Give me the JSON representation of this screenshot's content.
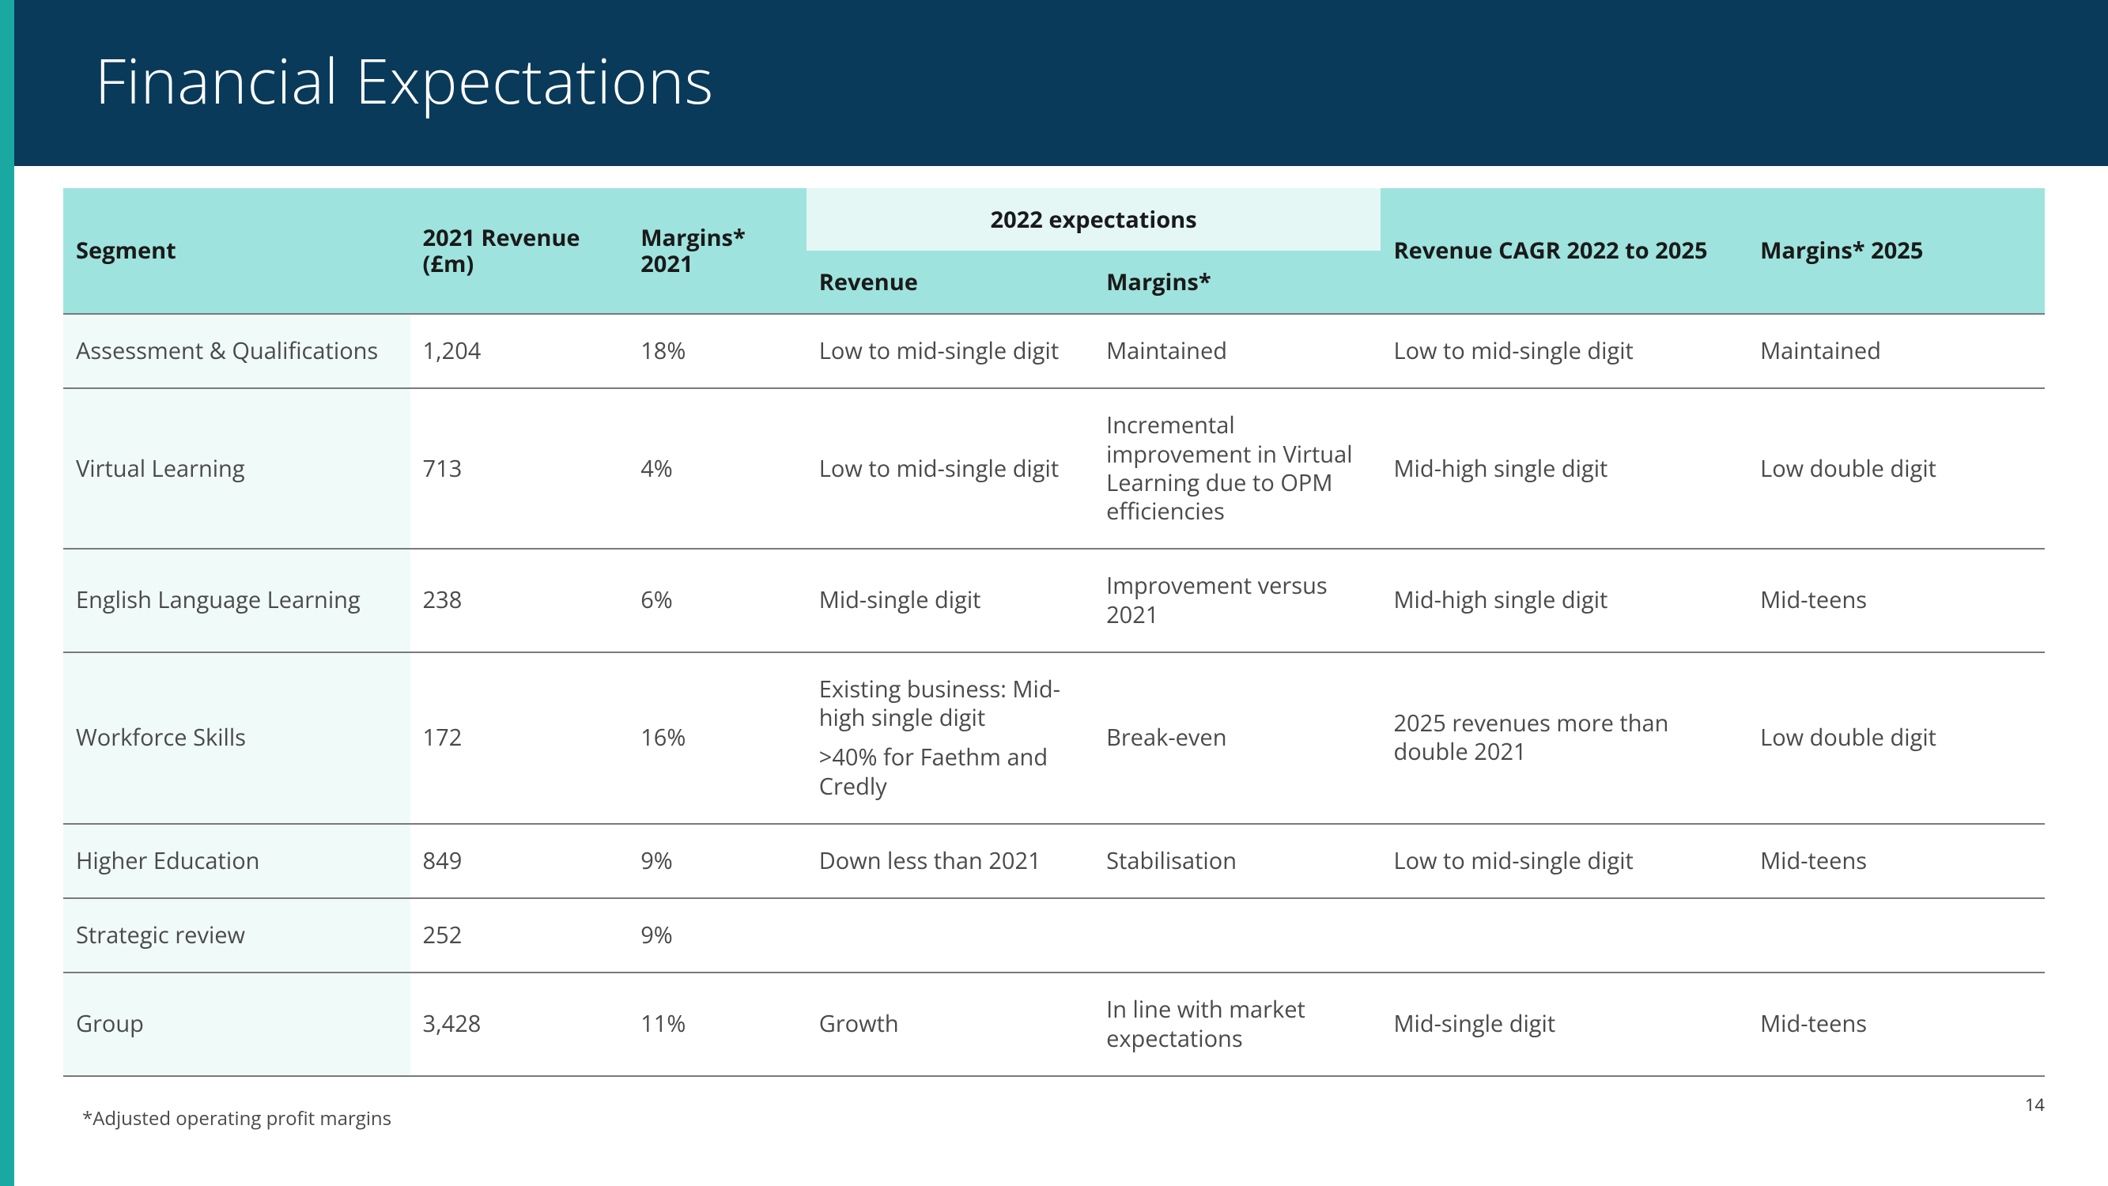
{
  "colors": {
    "accent": "#19a9a0",
    "header_bg": "#0a3a5a",
    "th_bg_main": "#9fe3de",
    "th_bg_expect_top": "#e4f7f5",
    "row_seg_bg": "#f0faf9",
    "border": "#7a7a7a",
    "text": "#4a4a4a",
    "title_text": "#ffffff"
  },
  "typography": {
    "title_fontsize": 78,
    "title_weight": 300,
    "th_fontsize": 29,
    "td_fontsize": 29,
    "footnote_fontsize": 24
  },
  "title": "Financial Expectations",
  "page_number": "14",
  "footnote": "*Adjusted operating profit margins",
  "table": {
    "headers": {
      "segment": "Segment",
      "rev2021": "2021 Revenue (£m)",
      "margins2021": "Margins* 2021",
      "expectations_group": "2022 expectations",
      "exp_revenue": "Revenue",
      "exp_margins": "Margins*",
      "cagr": "Revenue CAGR 2022 to 2025",
      "margins2025": "Margins* 2025"
    },
    "rows": [
      {
        "segment": "Assessment & Qualifications",
        "rev2021": "1,204",
        "margins2021": "18%",
        "exp_revenue": "Low to mid-single digit",
        "exp_margins": "Maintained",
        "cagr": "Low to mid-single digit",
        "margins2025": "Maintained"
      },
      {
        "segment": "Virtual Learning",
        "rev2021": "713",
        "margins2021": "4%",
        "exp_revenue": "Low to mid-single digit",
        "exp_margins": "Incremental improvement in Virtual Learning due to OPM efficiencies",
        "cagr": "Mid-high single digit",
        "margins2025": "Low double digit"
      },
      {
        "segment": "English Language Learning",
        "rev2021": "238",
        "margins2021": "6%",
        "exp_revenue": "Mid-single digit",
        "exp_margins": "Improvement versus 2021",
        "cagr": "Mid-high single digit",
        "margins2025": "Mid-teens"
      },
      {
        "segment": "Workforce Skills",
        "rev2021": "172",
        "margins2021": "16%",
        "exp_revenue": "Existing business: Mid-high single digit",
        "exp_revenue_sub": ">40% for Faethm and Credly",
        "exp_margins": "Break-even",
        "cagr": "2025 revenues more than double 2021",
        "margins2025": "Low double digit"
      },
      {
        "segment": "Higher Education",
        "rev2021": "849",
        "margins2021": "9%",
        "exp_revenue": "Down less than 2021",
        "exp_margins": "Stabilisation",
        "cagr": "Low to mid-single digit",
        "margins2025": "Mid-teens"
      },
      {
        "segment": "Strategic review",
        "rev2021": "252",
        "margins2021": "9%",
        "exp_revenue": "",
        "exp_margins": "",
        "cagr": "",
        "margins2025": ""
      },
      {
        "segment": "Group",
        "rev2021": "3,428",
        "margins2021": "11%",
        "exp_revenue": "Growth",
        "exp_margins": "In line with market expectations",
        "cagr": "Mid-single digit",
        "margins2025": "Mid-teens"
      }
    ]
  }
}
